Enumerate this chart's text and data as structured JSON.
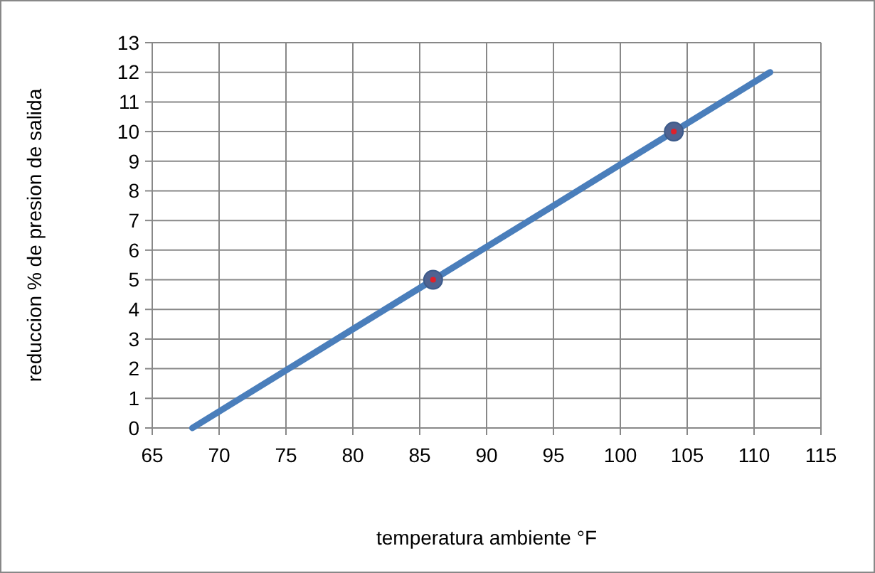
{
  "chart_data": {
    "type": "line",
    "xlabel": "temperatura ambiente °F",
    "ylabel": "reduccion % de presion de salida",
    "series": [
      {
        "color": "#4a7ebb",
        "x": [
          68,
          111.2
        ],
        "values": [
          0,
          12
        ]
      },
      {
        "type": "scatter",
        "color": "#4f6391",
        "x": [
          86,
          104
        ],
        "values": [
          5,
          10
        ],
        "marker": "circle"
      }
    ],
    "xlim": [
      65,
      115
    ],
    "xticks": [
      65,
      70,
      75,
      80,
      85,
      90,
      95,
      100,
      105,
      110,
      115
    ],
    "ylim": [
      0,
      13
    ],
    "yticks": [
      0,
      1,
      2,
      3,
      4,
      5,
      6,
      7,
      8,
      9,
      10,
      11,
      12,
      13
    ],
    "grid": true
  }
}
